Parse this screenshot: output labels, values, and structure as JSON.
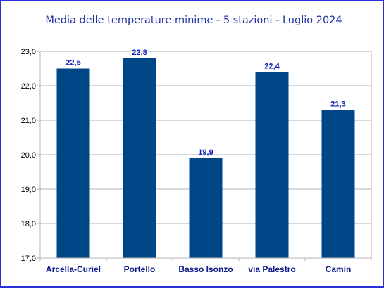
{
  "chart_data": {
    "type": "bar",
    "title": "Media delle temperature minime - 5 stazioni - Luglio 2024",
    "categories": [
      "Arcella-Curiel",
      "Portello",
      "Basso Isonzo",
      "via Palestro",
      "Camin"
    ],
    "values": [
      22.5,
      22.8,
      19.9,
      22.4,
      21.3
    ],
    "data_labels": [
      "22,5",
      "22,8",
      "19,9",
      "22,4",
      "21,3"
    ],
    "ylim": [
      17.0,
      23.0
    ],
    "yticks": [
      "17,0",
      "18,0",
      "19,0",
      "20,0",
      "21,0",
      "22,0",
      "23,0"
    ],
    "grid": true,
    "legend": "none",
    "colors": {
      "bar": "#004586",
      "frame_border": "#2b31d8",
      "title": "#1f2fa8",
      "data_label": "#1320b8",
      "category_label": "#0e1a8c",
      "grid": "#b3b3b3"
    }
  }
}
